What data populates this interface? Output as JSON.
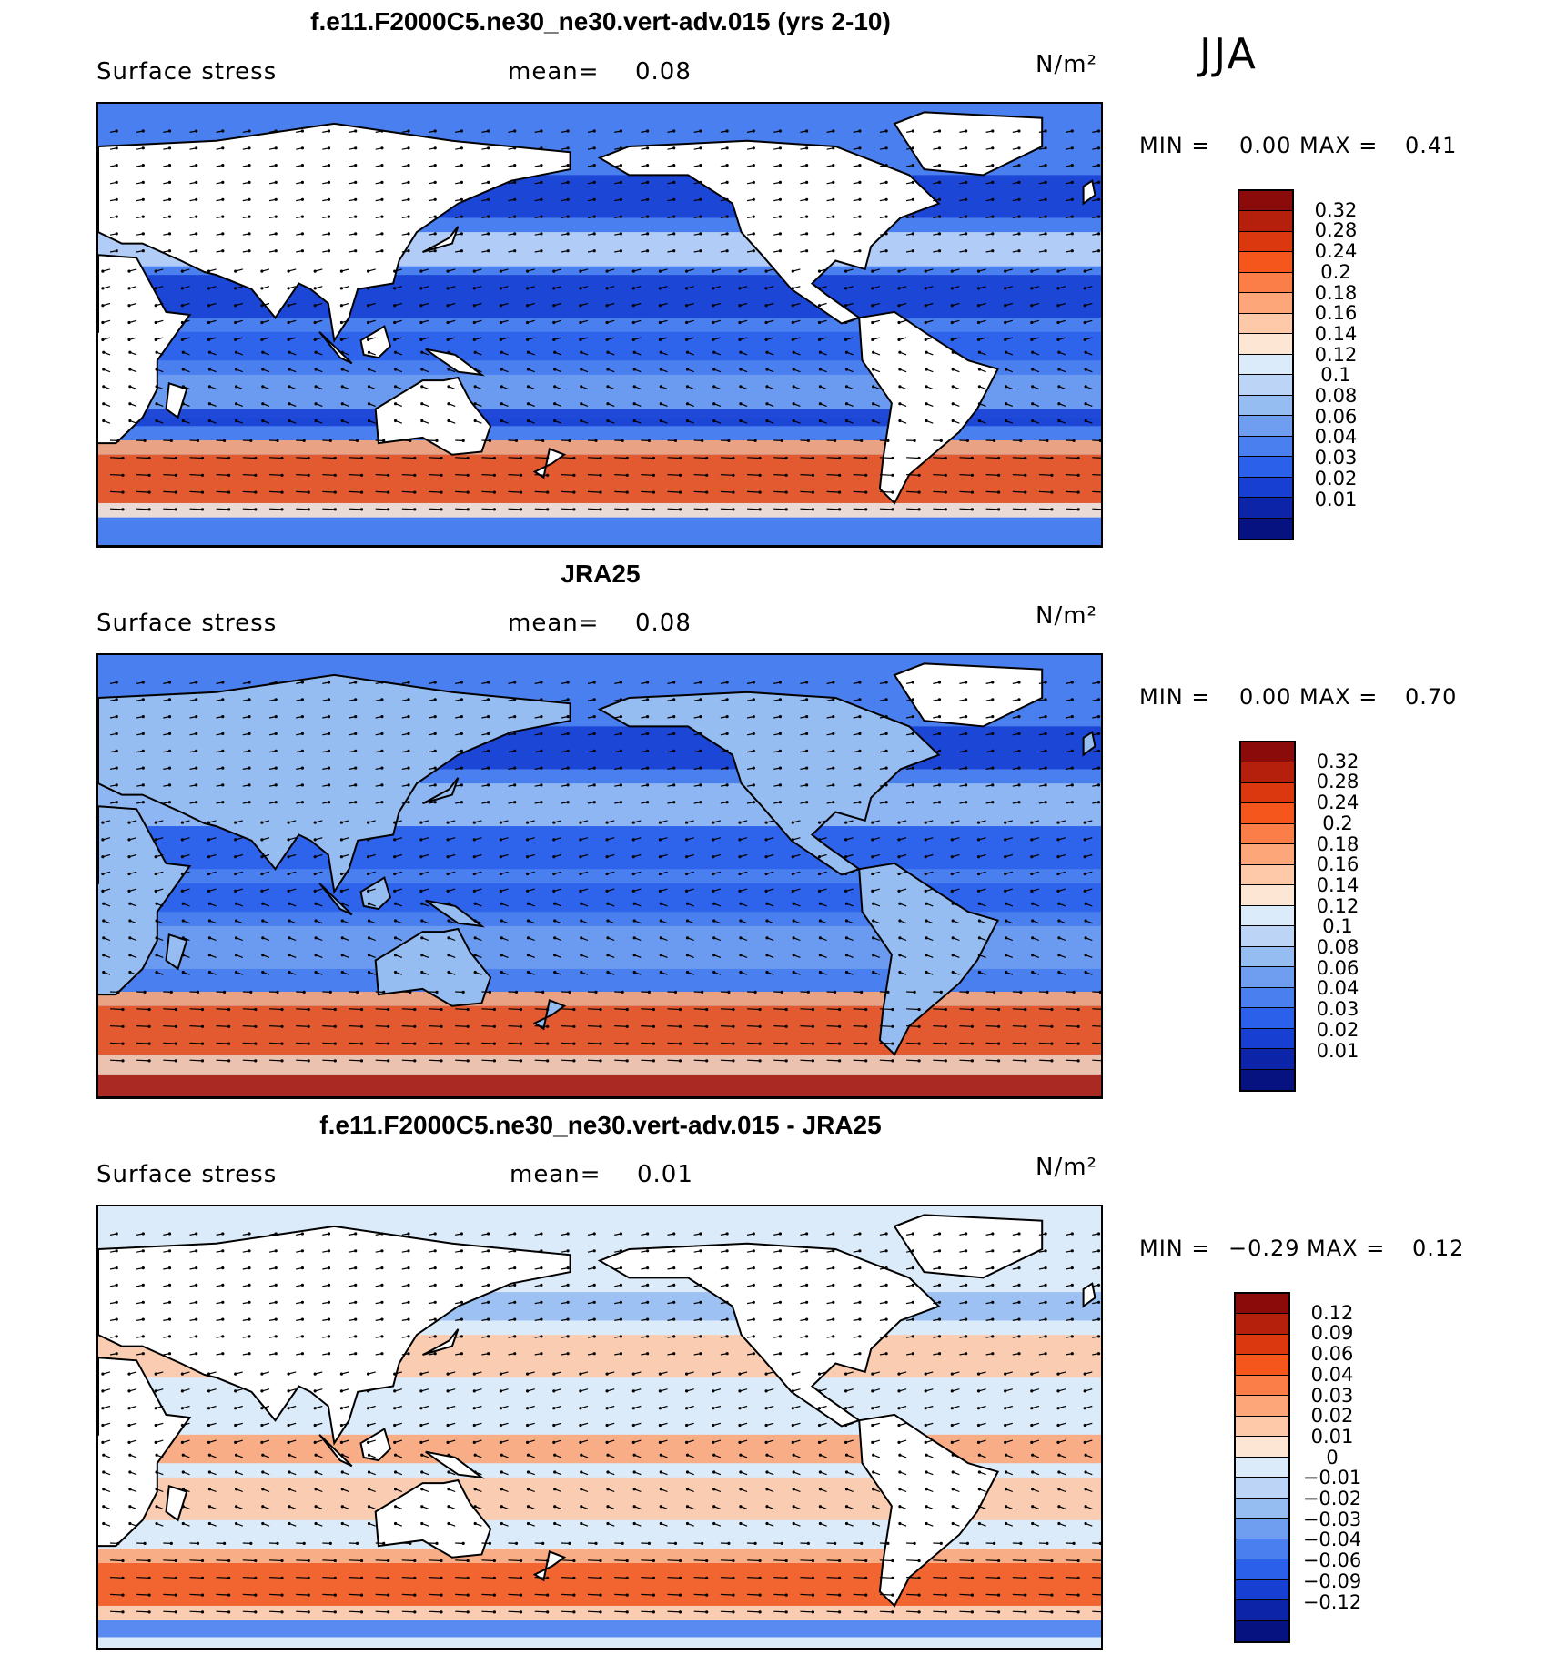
{
  "season": "JJA",
  "palettes": {
    "full": [
      "#8b0a0a",
      "#b5200c",
      "#dc380f",
      "#f4561b",
      "#fb7e48",
      "#fca679",
      "#fdc9a8",
      "#fde6d4",
      "#dcebf9",
      "#bcd5f6",
      "#96bdf2",
      "#6f9ef0",
      "#4a7fef",
      "#2b60eb",
      "#1740d3",
      "#0c25a8",
      "#061280"
    ],
    "panel3": [
      "#8b0a0a",
      "#b5200c",
      "#dc380f",
      "#f4561b",
      "#fb7e48",
      "#fca679",
      "#fdc9a8",
      "#fde6d4",
      "#dcebf9",
      "#bcd5f6",
      "#96bdf2",
      "#6f9ef0",
      "#4a7fef",
      "#2b60eb",
      "#1740d3",
      "#0c25a8",
      "#061280"
    ]
  },
  "panels": [
    {
      "title": "f.e11.F2000C5.ne30_ne30.vert-adv.015 (yrs 2-10)",
      "variable": "Surface stress",
      "mean_label": "mean=",
      "mean_value": "0.08",
      "units": "N/m²",
      "min_label": "MIN =",
      "min_value": "0.00",
      "max_label": "MAX =",
      "max_value": "0.41",
      "colorbar_levels": [
        "0.32",
        "0.28",
        "0.24",
        "0.2",
        "0.18",
        "0.16",
        "0.14",
        "0.12",
        "0.1",
        "0.08",
        "0.06",
        "0.04",
        "0.03",
        "0.02",
        "0.01"
      ]
    },
    {
      "title": "JRA25",
      "variable": "Surface stress",
      "mean_label": "mean=",
      "mean_value": "0.08",
      "units": "N/m²",
      "min_label": "MIN =",
      "min_value": "0.00",
      "max_label": "MAX =",
      "max_value": "0.70",
      "colorbar_levels": [
        "0.32",
        "0.28",
        "0.24",
        "0.2",
        "0.18",
        "0.16",
        "0.14",
        "0.12",
        "0.1",
        "0.08",
        "0.06",
        "0.04",
        "0.03",
        "0.02",
        "0.01"
      ]
    },
    {
      "title": "f.e11.F2000C5.ne30_ne30.vert-adv.015 - JRA25",
      "variable": "Surface stress",
      "mean_label": "mean=",
      "mean_value": "0.01",
      "units": "N/m²",
      "min_label": "MIN =",
      "min_value": "−0.29",
      "max_label": "MAX =",
      "max_value": "0.12",
      "colorbar_levels": [
        "0.12",
        "0.09",
        "0.06",
        "0.04",
        "0.03",
        "0.02",
        "0.01",
        "0",
        "−0.01",
        "−0.02",
        "−0.03",
        "−0.04",
        "−0.06",
        "−0.09",
        "−0.12"
      ]
    }
  ]
}
